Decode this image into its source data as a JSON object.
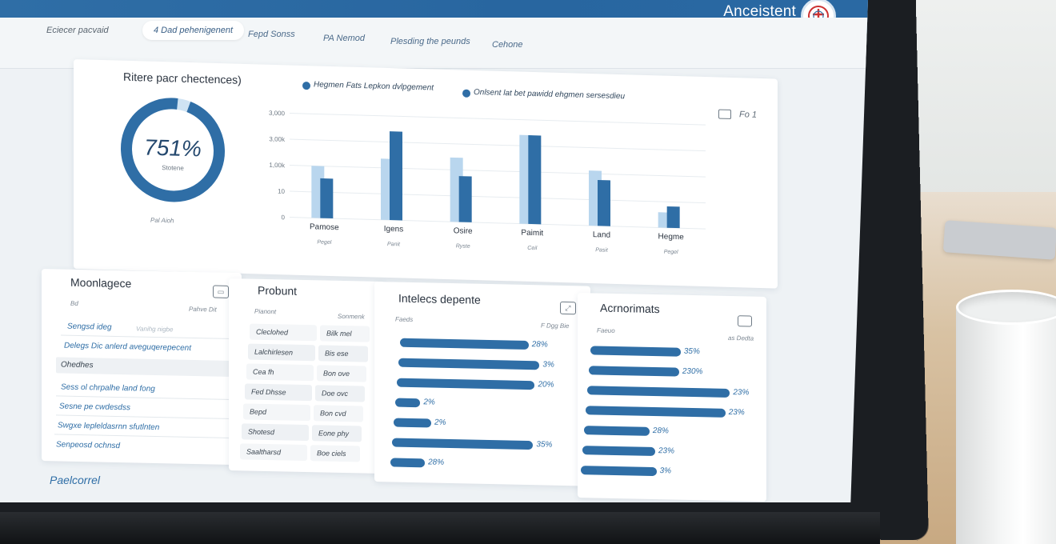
{
  "app": {
    "title": "Anceistent"
  },
  "nav": {
    "items": [
      {
        "label": "Eciecer pacvaid"
      },
      {
        "label": "4 Dad pehenigenent"
      },
      {
        "label": "Fepd Sonss"
      },
      {
        "label": "PA Nemod"
      },
      {
        "label": "Plesding the peunds"
      },
      {
        "label": "Cehone"
      }
    ]
  },
  "overview_card": {
    "title": "Ritere pacr chectences)",
    "donut_value": "751%",
    "donut_sublabel": "Stotene",
    "donut_footer": "Pal Aioh",
    "donut_fraction": 0.96,
    "legend": [
      {
        "label": "Hegmen Fats Lepkon dvlpgement"
      },
      {
        "label": "Onlsent lat bet pawidd ehgmen sersesdieu"
      }
    ],
    "corner_action": "Fo 1",
    "y_ticks": [
      "3,000",
      "3,00k",
      "1,00k",
      "10",
      "0"
    ]
  },
  "chart_data": {
    "type": "bar",
    "categories": [
      "Pamose",
      "Igens",
      "Osire",
      "Paimit",
      "Land",
      "Hegme"
    ],
    "sublabels": [
      "Pegel",
      "Panit",
      "Ryste",
      "Ceil",
      "Pasit",
      "Pegel"
    ],
    "series": [
      {
        "values": [
          1.7,
          2.0,
          2.1,
          2.9,
          1.8,
          0.5
        ]
      },
      {
        "values": [
          1.3,
          2.9,
          1.5,
          2.9,
          1.5,
          0.7
        ]
      }
    ],
    "y_ticks": [
      "0",
      "10",
      "1,00k",
      "3,00k",
      "3,000"
    ],
    "ylim": [
      0,
      3.4
    ],
    "colors": [
      "#b9d6ee",
      "#2f6ea6"
    ],
    "grid": true
  },
  "panel_mgmt": {
    "title": "Moonlagece",
    "col_left": "Bd",
    "col_right": "Pahve Dit",
    "links": [
      {
        "label": "Sengsd ideg",
        "hint": "Vanihg nigbe"
      },
      {
        "label": "Delegs Dic anlerd aveguqerepecent"
      },
      {
        "label": "Ohedhes"
      },
      {
        "label": "Sess ol chrpalhe land fong"
      },
      {
        "label": "Sesne pe cwdesdss"
      },
      {
        "label": "Swgxe lepleldasrnn sfutlnten"
      },
      {
        "label": "Senpeosd ochnsd"
      }
    ],
    "footer": "Paelcorrel"
  },
  "panel_product": {
    "title": "Probunt",
    "col_left": "Pianont",
    "col_right": "Sonmenk",
    "rows": [
      {
        "a": "Cleclohed",
        "b": "Bilk mel"
      },
      {
        "a": "Lalchirlesen",
        "b": "Bis ese"
      },
      {
        "a": "Cea fh",
        "b": "Bon ove"
      },
      {
        "a": "Fed Dhsse",
        "b": "Doe ovc"
      },
      {
        "a": "Bepd",
        "b": "Bon cvd"
      },
      {
        "a": "Shotesd",
        "b": "Eone phy"
      },
      {
        "a": "Saaltharsd",
        "b": "Boe ciels"
      }
    ]
  },
  "panel_interest": {
    "title": "Intelecs depente",
    "col_left": "Faeds",
    "col_right": "F Dgg Bie",
    "rows": [
      {
        "label": "28%",
        "value": 0.82
      },
      {
        "label": "3%",
        "value": 0.9
      },
      {
        "label": "20%",
        "value": 0.88
      },
      {
        "label": "2%",
        "value": 0.16
      },
      {
        "label": "2%",
        "value": 0.24
      },
      {
        "label": "35%",
        "value": 0.9
      },
      {
        "label": "28%",
        "value": 0.22
      }
    ]
  },
  "panel_achievements": {
    "title": "Acrnorimats",
    "col_left": "Faeuo",
    "col_right": "as Dedta",
    "rows": [
      {
        "label": "35%",
        "value": 0.62
      },
      {
        "label": "230%",
        "value": 0.62
      },
      {
        "label": "23%",
        "value": 0.98
      },
      {
        "label": "23%",
        "value": 0.96
      },
      {
        "label": "28%",
        "value": 0.45
      },
      {
        "label": "23%",
        "value": 0.5
      },
      {
        "label": "3%",
        "value": 0.52
      }
    ]
  }
}
